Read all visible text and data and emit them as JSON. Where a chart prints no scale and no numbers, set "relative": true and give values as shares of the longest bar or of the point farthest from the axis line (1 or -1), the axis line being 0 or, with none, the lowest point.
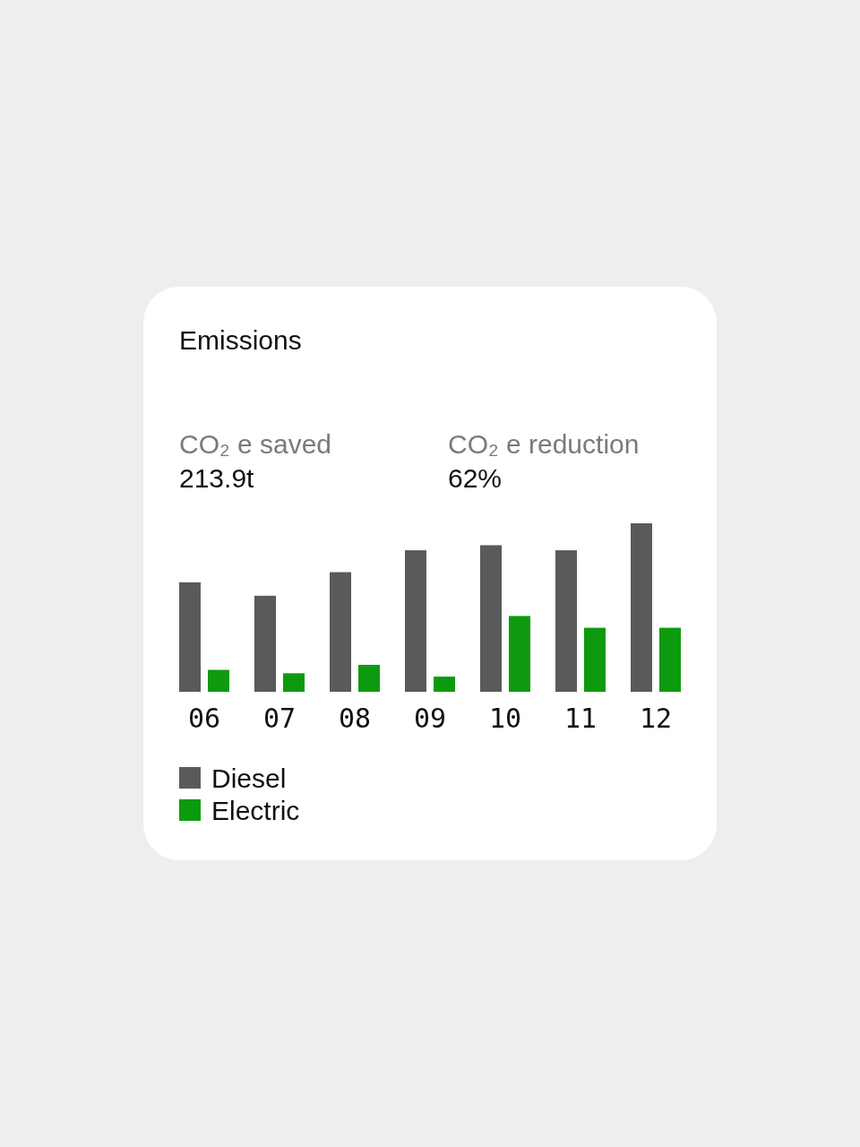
{
  "chart_data": {
    "type": "bar",
    "title": "Emissions",
    "annotations": [
      "CO₂ e saved",
      "213.9t",
      "CO₂ e reduction",
      "62%"
    ],
    "categories": [
      "06",
      "07",
      "08",
      "09",
      "10",
      "11",
      "12"
    ],
    "relative": true,
    "legend": "bottom left",
    "series": [
      {
        "name": "Diesel",
        "color": "#5a5a5a",
        "values": [
          0.65,
          0.57,
          0.71,
          0.84,
          0.87,
          0.84,
          1
        ]
      },
      {
        "name": "Electric",
        "color": "#0e9a0e",
        "values": [
          0.13,
          0.11,
          0.16,
          0.09,
          0.45,
          0.38,
          0.38
        ]
      }
    ]
  }
}
